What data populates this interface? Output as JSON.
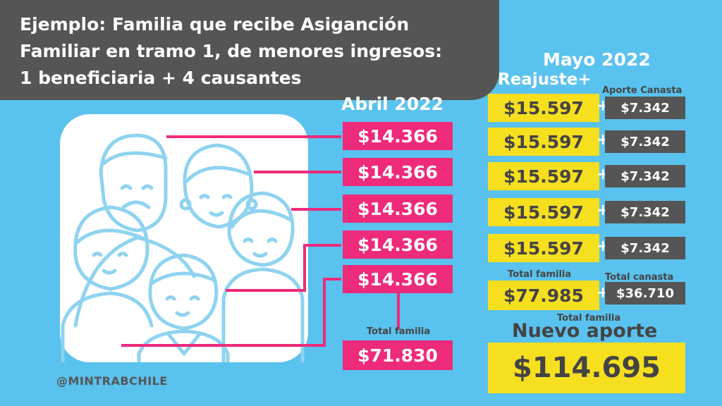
{
  "title": {
    "line1": "Ejemplo: Familia que recibe Asiganción",
    "line2": "Familiar en tramo 1, de menores ingresos:",
    "line3": "1 beneficiaria + 4 causantes"
  },
  "april": {
    "heading": "Abril 2022",
    "values": [
      "$14.366",
      "$14.366",
      "$14.366",
      "$14.366",
      "$14.366"
    ],
    "total_label": "Total familia",
    "total": "$71.830"
  },
  "may": {
    "heading": "Mayo 2022",
    "reajuste_label": "Reajuste+",
    "canasta_label": "Aporte Canasta",
    "rows": [
      {
        "reajuste": "$15.597",
        "canasta": "$7.342"
      },
      {
        "reajuste": "$15.597",
        "canasta": "$7.342"
      },
      {
        "reajuste": "$15.597",
        "canasta": "$7.342"
      },
      {
        "reajuste": "$15.597",
        "canasta": "$7.342"
      },
      {
        "reajuste": "$15.597",
        "canasta": "$7.342"
      }
    ],
    "plus": "+",
    "total_familia_label": "Total familia",
    "total_canasta_label": "Total canasta",
    "total_familia": "$77.985",
    "total_canasta": "$36.710",
    "nuevo_total_label": "Total familia",
    "nuevo_aporte_label": "Nuevo aporte",
    "nuevo_aporte": "$114.695"
  },
  "illustration": "family-illustration",
  "handle": "@MINTRABCHILE",
  "colors": {
    "background": "#5ac2ee",
    "title_box": "#555555",
    "pink": "#ee2a7b",
    "yellow": "#f5df1f",
    "dark": "#555555",
    "line_art": "#8fd3f0"
  }
}
